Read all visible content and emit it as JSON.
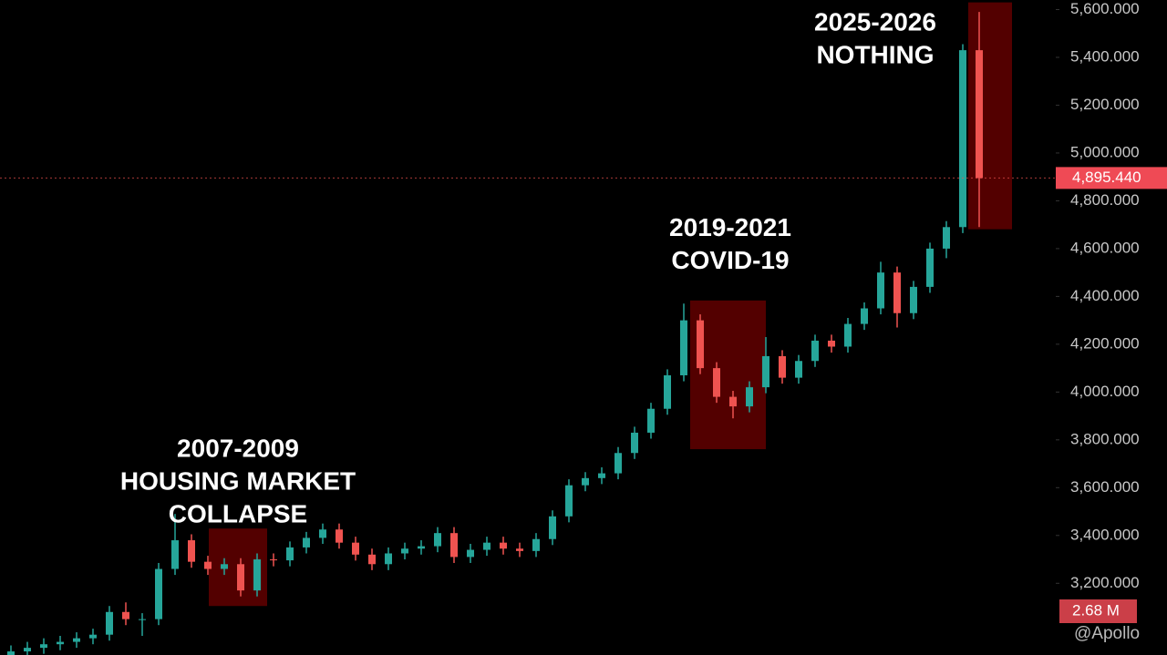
{
  "chart_data": {
    "type": "candlestick",
    "ylim": [
      2900,
      5640
    ],
    "yticks": [
      {
        "value": 3200,
        "label": "3,200.000"
      },
      {
        "value": 3400,
        "label": "3,400.000"
      },
      {
        "value": 3600,
        "label": "3,600.000"
      },
      {
        "value": 3800,
        "label": "3,800.000"
      },
      {
        "value": 4000,
        "label": "4,000.000"
      },
      {
        "value": 4200,
        "label": "4,200.000"
      },
      {
        "value": 4400,
        "label": "4,400.000"
      },
      {
        "value": 4600,
        "label": "4,600.000"
      },
      {
        "value": 4800,
        "label": "4,800.000"
      },
      {
        "value": 5000,
        "label": "5,000.000"
      },
      {
        "value": 5200,
        "label": "5,200.000"
      },
      {
        "value": 5400,
        "label": "5,400.000"
      },
      {
        "value": 5600,
        "label": "5,600.000"
      }
    ],
    "up_color": "#26a69a",
    "down_color": "#ef5350",
    "open": [
      2900,
      2915,
      2930,
      2945,
      2955,
      2970,
      2985,
      3080,
      3050,
      3050,
      3260,
      3380,
      3290,
      3260,
      3280,
      3170,
      3300,
      3296,
      3350,
      3390,
      3425,
      3370,
      3320,
      3280,
      3325,
      3345,
      3355,
      3410,
      3310,
      3340,
      3370,
      3345,
      3335,
      3385,
      3480,
      3610,
      3640,
      3660,
      3745,
      3830,
      3930,
      4070,
      4300,
      4100,
      3980,
      3940,
      4020,
      4150,
      4060,
      4130,
      4215,
      4190,
      4285,
      4350,
      4500,
      4330,
      4440,
      4600,
      4690,
      5430
    ],
    "high": [
      2940,
      2955,
      2970,
      2980,
      2995,
      3010,
      3105,
      3120,
      3075,
      3285,
      3490,
      3405,
      3315,
      3305,
      3305,
      3325,
      3325,
      3375,
      3415,
      3450,
      3450,
      3395,
      3345,
      3350,
      3370,
      3380,
      3435,
      3435,
      3365,
      3395,
      3395,
      3370,
      3410,
      3505,
      3635,
      3665,
      3685,
      3770,
      3855,
      3955,
      4095,
      4370,
      4325,
      4125,
      4005,
      4045,
      4230,
      4175,
      4155,
      4240,
      4240,
      4310,
      4375,
      4545,
      4525,
      4465,
      4625,
      4715,
      5455,
      5590
    ],
    "low": [
      2875,
      2890,
      2905,
      2920,
      2930,
      2945,
      2960,
      3025,
      2980,
      3025,
      3235,
      3265,
      3235,
      3235,
      3145,
      3145,
      3271,
      3271,
      3325,
      3365,
      3345,
      3295,
      3255,
      3255,
      3300,
      3320,
      3330,
      3285,
      3285,
      3315,
      3320,
      3310,
      3310,
      3360,
      3455,
      3585,
      3615,
      3635,
      3720,
      3805,
      3905,
      4045,
      4075,
      3955,
      3890,
      3915,
      3995,
      4035,
      4035,
      4105,
      4165,
      4165,
      4260,
      4325,
      4270,
      4305,
      4415,
      4560,
      4665,
      4690
    ],
    "close": [
      2915,
      2930,
      2945,
      2955,
      2970,
      2985,
      3080,
      3050,
      3050,
      3260,
      3380,
      3290,
      3260,
      3280,
      3170,
      3300,
      3296,
      3350,
      3390,
      3425,
      3370,
      3320,
      3280,
      3325,
      3345,
      3355,
      3410,
      3310,
      3340,
      3370,
      3345,
      3335,
      3385,
      3480,
      3610,
      3640,
      3660,
      3745,
      3830,
      3930,
      4070,
      4300,
      4100,
      3980,
      3940,
      4020,
      4150,
      4060,
      4130,
      4215,
      4190,
      4285,
      4350,
      4500,
      4330,
      4440,
      4600,
      4690,
      5430,
      4895
    ],
    "current_price": {
      "value": 4895.44,
      "label": "4,895.440"
    },
    "volume_label": "2.68 M",
    "watermark": "@Apollo",
    "annotations": [
      {
        "lines": [
          "2007-2009",
          "HOUSING MARKET",
          "COLLAPSE"
        ],
        "high": 3429,
        "low": 3105
      },
      {
        "lines": [
          "2019-2021",
          "COVID-19"
        ],
        "high": 4383,
        "low": 3761
      },
      {
        "lines": [
          "2025-2026",
          "NOTHING"
        ],
        "high": 5630,
        "low": 4681
      }
    ]
  }
}
